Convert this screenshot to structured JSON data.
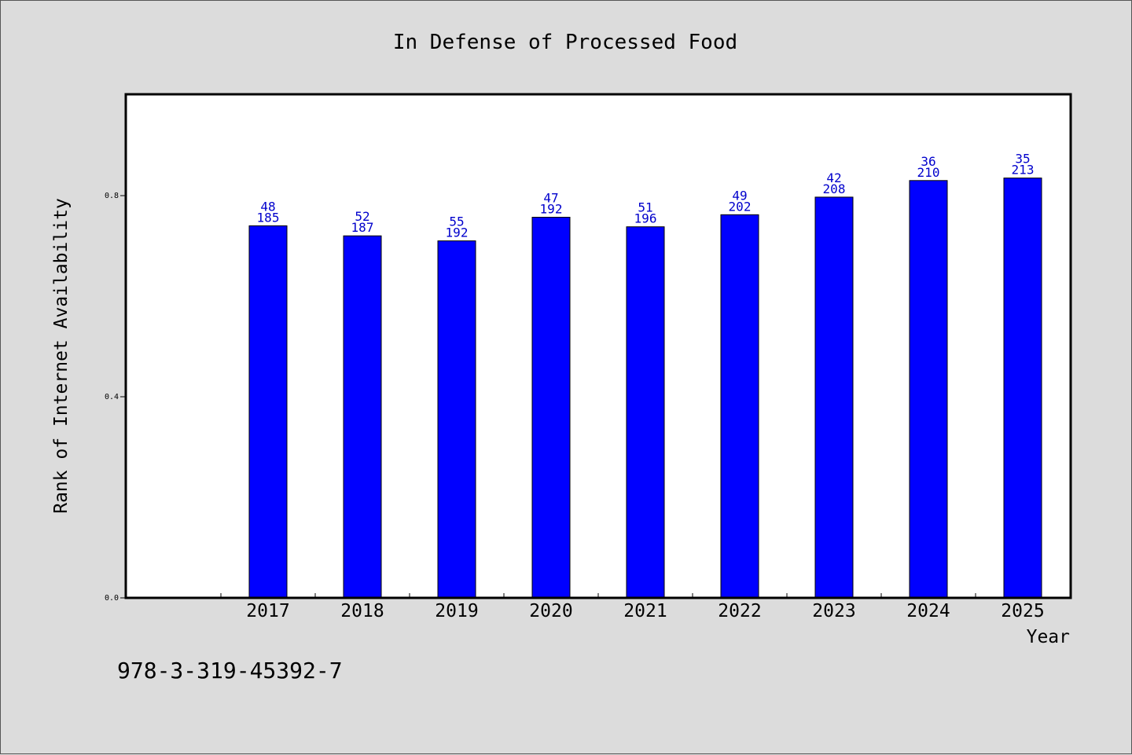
{
  "chart_data": {
    "type": "bar",
    "title": "In Defense of Processed Food",
    "xlabel": "Year",
    "ylabel": "Rank of Internet Availability",
    "ylim": [
      0,
      1.0
    ],
    "yticks": [
      0.0,
      0.4,
      0.8
    ],
    "ytick_labels": [
      "0.0",
      "0.4",
      "0.8"
    ],
    "categories": [
      "2017",
      "2018",
      "2019",
      "2020",
      "2021",
      "2022",
      "2023",
      "2024",
      "2025"
    ],
    "values": [
      0.74,
      0.72,
      0.71,
      0.757,
      0.738,
      0.762,
      0.797,
      0.83,
      0.835
    ],
    "data_labels": [
      [
        "48",
        "185"
      ],
      [
        "52",
        "187"
      ],
      [
        "55",
        "192"
      ],
      [
        "47",
        "192"
      ],
      [
        "51",
        "196"
      ],
      [
        "49",
        "202"
      ],
      [
        "42",
        "208"
      ],
      [
        "36",
        "210"
      ],
      [
        "35",
        "213"
      ]
    ],
    "grid": false,
    "colors": {
      "bar": "#0000ff",
      "label": "#0000cc",
      "plot_bg": "#ffffff",
      "page_bg": "#dcdcdc"
    }
  },
  "footer": {
    "identifier": "978-3-319-45392-7"
  }
}
